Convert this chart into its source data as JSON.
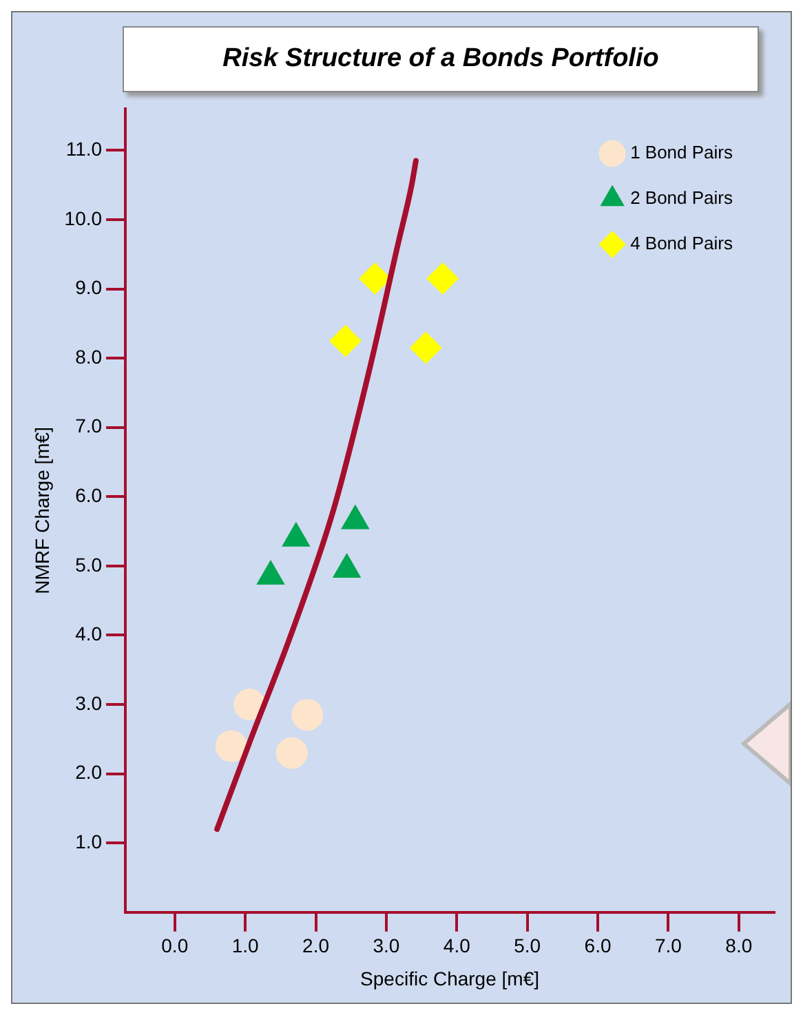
{
  "chart_data": {
    "type": "scatter",
    "title": "Risk Structure of a Bonds  Portfolio",
    "xlabel": "Specific Charge [m€]",
    "ylabel": "NMRF Charge [m€]",
    "xlim": [
      -0.7,
      8.5
    ],
    "ylim": [
      0,
      11.6
    ],
    "xticks": [
      {
        "value": 0,
        "label": "0.0"
      },
      {
        "value": 1,
        "label": "1.0"
      },
      {
        "value": 2,
        "label": "2.0"
      },
      {
        "value": 3,
        "label": "3.0"
      },
      {
        "value": 4,
        "label": "4.0"
      },
      {
        "value": 5,
        "label": "5.0"
      },
      {
        "value": 6,
        "label": "6.0"
      },
      {
        "value": 7,
        "label": "7.0"
      },
      {
        "value": 8,
        "label": "8.0"
      }
    ],
    "yticks": [
      {
        "value": 1,
        "label": "1.0"
      },
      {
        "value": 2,
        "label": "2.0"
      },
      {
        "value": 3,
        "label": "3.0"
      },
      {
        "value": 4,
        "label": "4.0"
      },
      {
        "value": 5,
        "label": "5.0"
      },
      {
        "value": 6,
        "label": "6.0"
      },
      {
        "value": 7,
        "label": "7.0"
      },
      {
        "value": 8,
        "label": "8.0"
      },
      {
        "value": 9,
        "label": "9.0"
      },
      {
        "value": 10,
        "label": "10.0"
      },
      {
        "value": 11,
        "label": "11.0"
      }
    ],
    "grid": false,
    "legend": "top right",
    "series": [
      {
        "type": "line",
        "color": "#a50f2d",
        "line_style": "solid",
        "marker": "none",
        "x": [
          0.6,
          1.06,
          1.66,
          2.26,
          2.76,
          3.16,
          3.36,
          3.42
        ],
        "values": [
          1.2,
          2.45,
          4.04,
          5.84,
          7.83,
          9.62,
          10.5,
          10.85
        ]
      },
      {
        "name": "1 Bond Pairs",
        "color": "#fde5cc",
        "marker": "circle",
        "x": [
          0.8,
          1.06,
          1.88,
          1.66
        ],
        "values": [
          2.4,
          3.0,
          2.85,
          2.3
        ]
      },
      {
        "name": "2 Bond Pairs",
        "color": "#00a651",
        "marker": "triangle",
        "x": [
          1.36,
          1.72,
          2.56,
          2.44
        ],
        "values": [
          4.85,
          5.4,
          5.65,
          4.95
        ]
      },
      {
        "name": "4 Bond Pairs",
        "color": "#ffff00",
        "marker": "diamond",
        "x": [
          2.42,
          2.84,
          3.8,
          3.56
        ],
        "values": [
          8.25,
          9.15,
          9.15,
          8.15
        ]
      }
    ]
  }
}
